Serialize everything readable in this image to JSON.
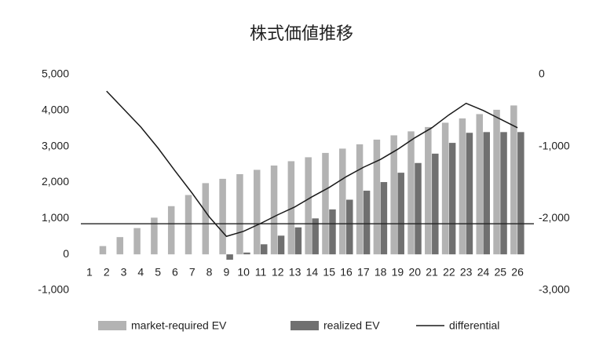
{
  "chart_data": {
    "type": "bar_line",
    "title": "株式価値推移",
    "categories": [
      "1",
      "2",
      "3",
      "4",
      "5",
      "6",
      "7",
      "8",
      "9",
      "10",
      "11",
      "12",
      "13",
      "14",
      "15",
      "16",
      "17",
      "18",
      "19",
      "20",
      "21",
      "22",
      "23",
      "24",
      "25",
      "26"
    ],
    "series": [
      {
        "name": "market-required EV",
        "type": "bar",
        "color": "#b3b3b3",
        "values": [
          0,
          230,
          480,
          730,
          1020,
          1340,
          1650,
          1980,
          2100,
          2230,
          2350,
          2470,
          2590,
          2700,
          2820,
          2940,
          3060,
          3190,
          3310,
          3420,
          3540,
          3660,
          3780,
          3900,
          4020,
          4140
        ]
      },
      {
        "name": "realized EV",
        "type": "bar",
        "color": "#707070",
        "values": [
          0,
          0,
          0,
          0,
          0,
          0,
          0,
          0,
          -150,
          50,
          280,
          520,
          750,
          1000,
          1250,
          1520,
          1770,
          2010,
          2270,
          2540,
          2800,
          3100,
          3380,
          3400,
          3400,
          3400
        ]
      },
      {
        "name": "differential",
        "type": "line",
        "axis": "y2",
        "color": "#1a1a1a",
        "values": [
          null,
          -230,
          -480,
          -730,
          -1020,
          -1340,
          -1650,
          -1980,
          -2250,
          -2180,
          -2070,
          -1950,
          -1840,
          -1700,
          -1570,
          -1420,
          -1290,
          -1180,
          -1040,
          -880,
          -740,
          -560,
          -400,
          -500,
          -620,
          -740
        ]
      }
    ],
    "ylim": [
      -1000,
      5000
    ],
    "yticks": [
      {
        "value": -1000,
        "label": "-1,000"
      },
      0,
      {
        "value": 1000,
        "label": "1,000"
      },
      {
        "value": 2000,
        "label": "2,000"
      },
      {
        "value": 3000,
        "label": "3,000"
      },
      {
        "value": 4000,
        "label": "4,000"
      },
      {
        "value": 5000,
        "label": "5,000"
      }
    ],
    "y2lim": [
      -3000,
      0
    ],
    "y2ticks": [
      {
        "value": -3000,
        "label": "-3,000"
      },
      {
        "value": -2000,
        "label": "-2,000"
      },
      {
        "value": -1000,
        "label": "-1,000"
      },
      0
    ],
    "reference_line": 850,
    "grid": false,
    "legend": "bottom"
  }
}
